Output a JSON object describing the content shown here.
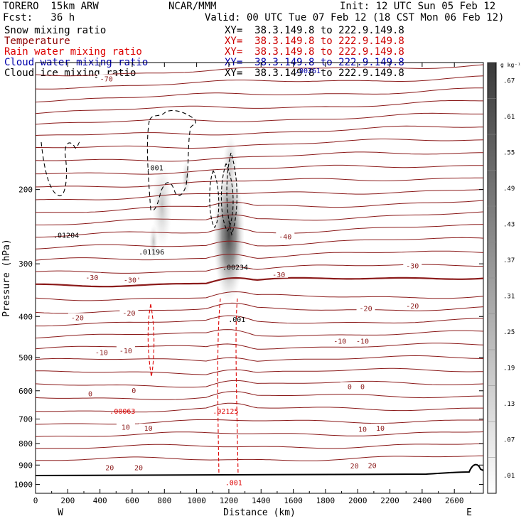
{
  "header": {
    "model": "TORERO  15km ARW",
    "center": "NCAR/MMM",
    "init": "Init: 12 UTC Sun 05 Feb 12",
    "fcst": "Fcst:   36 h",
    "valid": "Valid: 00 UTC Tue 07 Feb 12 (18 CST Mon 06 Feb 12)"
  },
  "fields": [
    {
      "label": "Snow mixing ratio",
      "color": "#000000",
      "xy": "XY=  38.3.149.8 to 222.9.149.8",
      "xy_color": "#000000"
    },
    {
      "label": "Temperature",
      "color": "#8b0000",
      "xy": "XY=  38.3.149.8 to 222.9.149.8",
      "xy_color": "#cc0000"
    },
    {
      "label": "Rain water mixing ratio",
      "color": "#dd0000",
      "xy": "XY=  38.3.149.8 to 222.9.149.8",
      "xy_color": "#cc0000"
    },
    {
      "label": "Cloud water mixing ratio",
      "color": "#0000aa",
      "xy": "XY=  38.3.149.8 to 222.9.149.8",
      "xy_color": "#0000aa"
    },
    {
      "label": "Cloud ice mixing ratio",
      "color": "#000000",
      "xy": "XY=  38.3.149.8 to 222.9.149.8",
      "xy_color": "#000000"
    }
  ],
  "chart_data": {
    "type": "contour",
    "xlabel": "Distance (km)",
    "ylabel": "Pressure (hPa)",
    "xlim": [
      0,
      2780
    ],
    "ylim": [
      1050,
      100
    ],
    "yscale": "log",
    "xticks": [
      "0",
      "200",
      "400",
      "600",
      "800",
      "1000",
      "1200",
      "1400",
      "1600",
      "1800",
      "2000",
      "2200",
      "2400",
      "2600"
    ],
    "yticks": [
      "200",
      "300",
      "400",
      "500",
      "600",
      "700",
      "800",
      "900",
      "1000"
    ],
    "x_end_labels": {
      "left": "W",
      "right": "E"
    },
    "colorbar": {
      "unit": "g kg⁻¹",
      "levels": [
        ".01",
        ".07",
        ".13",
        ".19",
        ".25",
        ".31",
        ".37",
        ".43",
        ".49",
        ".55",
        ".61",
        ".67"
      ]
    },
    "temperature_labels": [
      {
        "text": "-70",
        "x": 440,
        "p": 110
      },
      {
        "text": "-40",
        "x": 1550,
        "p": 260
      },
      {
        "text": "-30",
        "x": 350,
        "p": 325
      },
      {
        "text": "-30'",
        "x": 600,
        "p": 330
      },
      {
        "text": "-30",
        "x": 1510,
        "p": 320
      },
      {
        "text": "-30",
        "x": 2340,
        "p": 305
      },
      {
        "text": "-20",
        "x": 260,
        "p": 405
      },
      {
        "text": "-20",
        "x": 580,
        "p": 395
      },
      {
        "text": "-20",
        "x": 2050,
        "p": 385
      },
      {
        "text": "-20",
        "x": 2340,
        "p": 380
      },
      {
        "text": "-10",
        "x": 410,
        "p": 490
      },
      {
        "text": "-10",
        "x": 560,
        "p": 485
      },
      {
        "text": "-10",
        "x": 1890,
        "p": 460
      },
      {
        "text": "-10",
        "x": 2030,
        "p": 460
      },
      {
        "text": "0",
        "x": 340,
        "p": 613
      },
      {
        "text": "0",
        "x": 610,
        "p": 603
      },
      {
        "text": "0",
        "x": 1950,
        "p": 590
      },
      {
        "text": "0",
        "x": 2030,
        "p": 590
      },
      {
        "text": "10",
        "x": 560,
        "p": 736
      },
      {
        "text": "10",
        "x": 700,
        "p": 740
      },
      {
        "text": "10",
        "x": 2030,
        "p": 745
      },
      {
        "text": "10",
        "x": 2140,
        "p": 740
      },
      {
        "text": "20",
        "x": 460,
        "p": 918
      },
      {
        "text": "20",
        "x": 640,
        "p": 918
      },
      {
        "text": "20",
        "x": 1980,
        "p": 910
      },
      {
        "text": "20",
        "x": 2090,
        "p": 908
      }
    ],
    "max_labels": [
      {
        "field": "cloud ice",
        "text": ".01204",
        "x": 190,
        "p": 260
      },
      {
        "field": "cloud ice",
        "text": ".01196",
        "x": 720,
        "p": 285
      },
      {
        "field": "cloud ice",
        "text": ".001",
        "x": 740,
        "p": 180
      },
      {
        "field": "snow",
        "text": ".00234",
        "x": 1240,
        "p": 310
      },
      {
        "field": "snow",
        "text": ".001",
        "x": 1250,
        "p": 412
      },
      {
        "field": "cloud water",
        "text": ".00261",
        "x": 1690,
        "p": 106
      },
      {
        "field": "rain",
        "text": ".00063",
        "x": 540,
        "p": 680
      },
      {
        "field": "rain",
        "text": ".02125",
        "x": 1180,
        "p": 680
      },
      {
        "field": "rain",
        "text": ".001",
        "x": 1230,
        "p": 1005
      }
    ]
  }
}
